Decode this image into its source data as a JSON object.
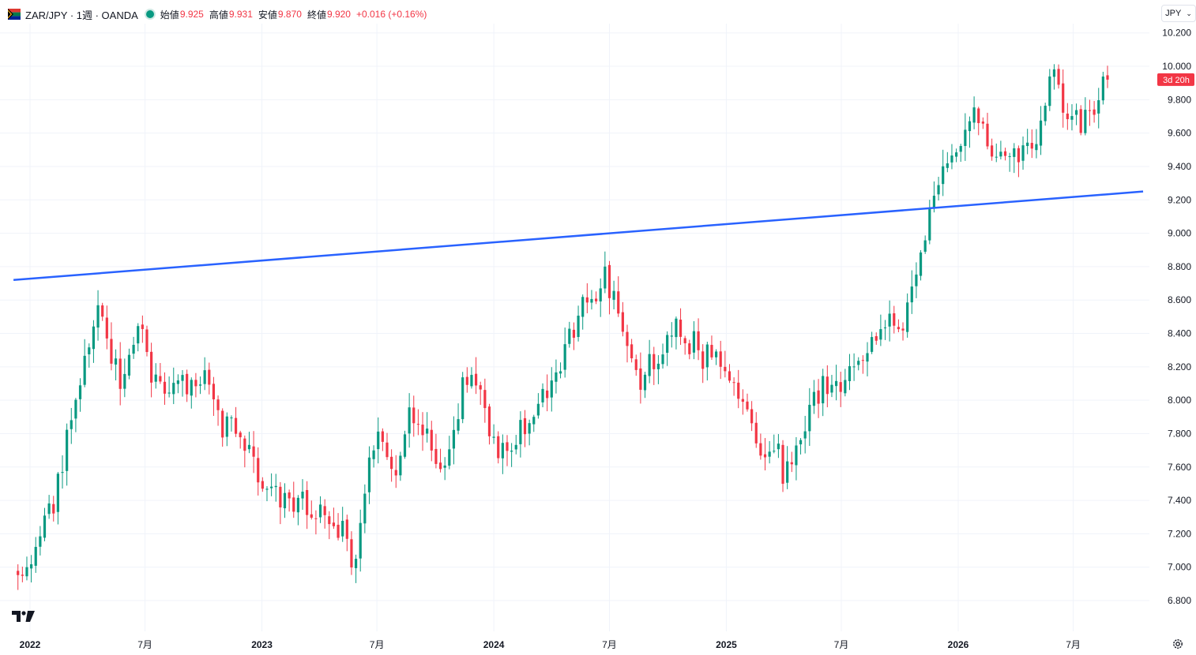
{
  "header": {
    "symbol": "ZAR/JPY · 1週 · OANDA",
    "open_label": "始値",
    "open": "9.925",
    "high_label": "高値",
    "high": "9.931",
    "low_label": "安値",
    "low": "9.870",
    "close_label": "終値",
    "close": "9.920",
    "change": "+0.016 (+0.16%)"
  },
  "currency_selector": "JPY",
  "countdown": "3d 20h",
  "colors": {
    "up": "#089981",
    "down": "#f23645",
    "trendline": "#2962ff",
    "grid": "#f0f3fa",
    "axis_text": "#131722"
  },
  "icons": [
    "south-africa-flag-icon",
    "market-status-dot-icon",
    "chevron-down-icon",
    "tradingview-logo-icon",
    "settings-gear-icon"
  ],
  "chart_data": {
    "type": "candlestick",
    "y_axis": {
      "ticks": [
        "10.200",
        "10.000",
        "9.800",
        "9.600",
        "9.400",
        "9.200",
        "9.000",
        "8.800",
        "8.600",
        "8.400",
        "8.200",
        "8.000",
        "7.800",
        "7.600",
        "7.400",
        "7.200",
        "7.000",
        "6.800"
      ],
      "range": [
        6.7,
        10.3
      ],
      "position": "right"
    },
    "x_axis": {
      "ticks": [
        {
          "label": "2022",
          "date": "2022-01-01",
          "bold": true
        },
        {
          "label": "7月",
          "date": "2022-07-01",
          "bold": false
        },
        {
          "label": "2023",
          "date": "2023-01-01",
          "bold": true
        },
        {
          "label": "7月",
          "date": "2023-07-01",
          "bold": false
        },
        {
          "label": "2024",
          "date": "2024-01-01",
          "bold": true
        },
        {
          "label": "7月",
          "date": "2024-07-01",
          "bold": false
        },
        {
          "label": "2025",
          "date": "2025-01-01",
          "bold": true
        },
        {
          "label": "7月",
          "date": "2025-07-01",
          "bold": false
        },
        {
          "label": "2026",
          "date": "2026-01-01",
          "bold": true
        },
        {
          "label": "7月",
          "date": "2026-07-01",
          "bold": false
        }
      ]
    },
    "interval": "1W",
    "first_bar": "2021-12-13",
    "last_bar": "2026-08-24",
    "current_price": 9.92,
    "anchors": [
      [
        "2021-12-13",
        7.0
      ],
      [
        "2022-02-14",
        7.55
      ],
      [
        "2022-04-18",
        8.6
      ],
      [
        "2022-05-23",
        7.95
      ],
      [
        "2022-06-20",
        8.55
      ],
      [
        "2022-07-18",
        8.05
      ],
      [
        "2022-10-03",
        8.1
      ],
      [
        "2022-11-14",
        7.75
      ],
      [
        "2023-02-13",
        7.4
      ],
      [
        "2023-05-29",
        7.05
      ],
      [
        "2023-06-26",
        7.8
      ],
      [
        "2023-07-17",
        7.55
      ],
      [
        "2023-08-21",
        7.95
      ],
      [
        "2023-10-02",
        7.55
      ],
      [
        "2023-11-20",
        8.2
      ],
      [
        "2024-01-01",
        7.65
      ],
      [
        "2024-03-04",
        7.9
      ],
      [
        "2024-05-13",
        8.55
      ],
      [
        "2024-06-24",
        8.8
      ],
      [
        "2024-08-19",
        8.0
      ],
      [
        "2024-10-07",
        8.5
      ],
      [
        "2024-11-25",
        8.3
      ],
      [
        "2025-03-31",
        7.5
      ],
      [
        "2025-05-12",
        7.95
      ],
      [
        "2025-07-28",
        8.3
      ],
      [
        "2025-10-06",
        8.6
      ],
      [
        "2025-11-24",
        9.3
      ],
      [
        "2026-01-26",
        9.75
      ],
      [
        "2026-03-09",
        9.35
      ],
      [
        "2026-04-20",
        9.55
      ],
      [
        "2026-05-25",
        9.85
      ],
      [
        "2026-07-13",
        9.55
      ],
      [
        "2026-08-24",
        9.92
      ]
    ],
    "trendline": {
      "start": [
        "2021-12-06",
        8.72
      ],
      "end": [
        "2026-10-19",
        9.25
      ]
    },
    "legend": "none",
    "grid": true
  }
}
